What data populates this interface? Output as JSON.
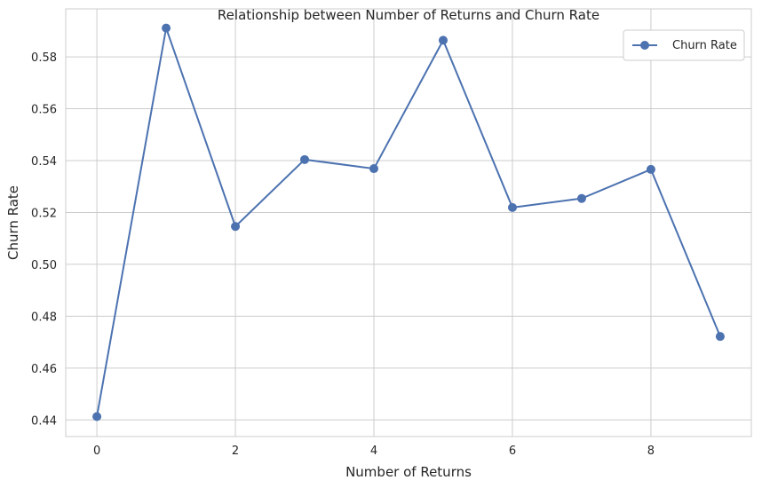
{
  "chart_data": {
    "type": "line",
    "title": "Relationship between Number of Returns and Churn Rate",
    "xlabel": "Number of Returns",
    "ylabel": "Churn Rate",
    "x": [
      0,
      1,
      2,
      3,
      4,
      5,
      6,
      7,
      8,
      9
    ],
    "xticks": [
      0,
      2,
      4,
      6,
      8
    ],
    "xtick_labels": [
      "0",
      "2",
      "4",
      "6",
      "8"
    ],
    "yticks": [
      0.44,
      0.46,
      0.48,
      0.5,
      0.52,
      0.54,
      0.56,
      0.58
    ],
    "ytick_labels": [
      "0.44",
      "0.46",
      "0.48",
      "0.50",
      "0.52",
      "0.54",
      "0.56",
      "0.58"
    ],
    "xlim": [
      -0.45,
      9.45
    ],
    "ylim": [
      0.4336,
      0.5985
    ],
    "grid": true,
    "legend_position": "top-right",
    "series": [
      {
        "name": "Churn Rate",
        "color": "#4c72b0",
        "marker": "circle",
        "values": [
          0.4413,
          0.5911,
          0.5146,
          0.5404,
          0.5369,
          0.5864,
          0.5219,
          0.5254,
          0.5366,
          0.4722
        ]
      }
    ]
  }
}
